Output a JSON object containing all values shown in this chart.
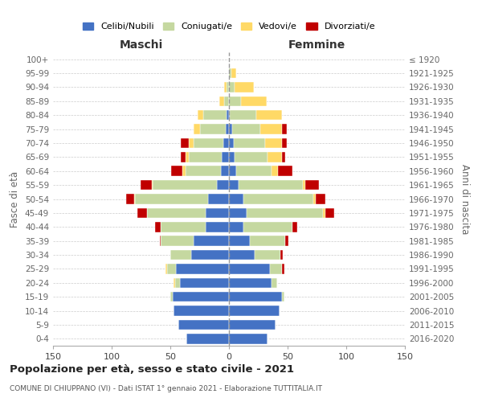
{
  "age_groups": [
    "0-4",
    "5-9",
    "10-14",
    "15-19",
    "20-24",
    "25-29",
    "30-34",
    "35-39",
    "40-44",
    "45-49",
    "50-54",
    "55-59",
    "60-64",
    "65-69",
    "70-74",
    "75-79",
    "80-84",
    "85-89",
    "90-94",
    "95-99",
    "100+"
  ],
  "birth_years": [
    "2016-2020",
    "2011-2015",
    "2006-2010",
    "2001-2005",
    "1996-2000",
    "1991-1995",
    "1986-1990",
    "1981-1985",
    "1976-1980",
    "1971-1975",
    "1966-1970",
    "1961-1965",
    "1956-1960",
    "1951-1955",
    "1946-1950",
    "1941-1945",
    "1936-1940",
    "1931-1935",
    "1926-1930",
    "1921-1925",
    "≤ 1920"
  ],
  "maschi": {
    "celibi": [
      36,
      43,
      47,
      48,
      42,
      45,
      32,
      30,
      20,
      20,
      18,
      10,
      7,
      6,
      5,
      3,
      2,
      0,
      0,
      0,
      0
    ],
    "coniugati": [
      0,
      0,
      0,
      2,
      4,
      8,
      18,
      28,
      38,
      50,
      62,
      55,
      30,
      28,
      25,
      22,
      20,
      4,
      2,
      0,
      0
    ],
    "vedovi": [
      0,
      0,
      0,
      0,
      1,
      1,
      0,
      0,
      0,
      0,
      1,
      1,
      3,
      3,
      4,
      5,
      5,
      4,
      2,
      0,
      0
    ],
    "divorziati": [
      0,
      0,
      0,
      0,
      0,
      0,
      0,
      1,
      5,
      8,
      7,
      9,
      9,
      4,
      7,
      0,
      0,
      0,
      0,
      0,
      0
    ]
  },
  "femmine": {
    "nubili": [
      33,
      40,
      43,
      45,
      36,
      35,
      22,
      18,
      12,
      15,
      12,
      8,
      6,
      5,
      4,
      3,
      1,
      0,
      0,
      0,
      0
    ],
    "coniugate": [
      0,
      0,
      0,
      2,
      5,
      10,
      22,
      30,
      42,
      65,
      60,
      55,
      30,
      28,
      27,
      24,
      22,
      10,
      5,
      2,
      0
    ],
    "vedove": [
      0,
      0,
      0,
      0,
      0,
      0,
      0,
      0,
      0,
      2,
      2,
      2,
      6,
      12,
      14,
      18,
      22,
      22,
      16,
      4,
      0
    ],
    "divorziate": [
      0,
      0,
      0,
      0,
      0,
      2,
      2,
      3,
      4,
      8,
      8,
      12,
      12,
      3,
      4,
      4,
      0,
      0,
      0,
      0,
      0
    ]
  },
  "colors": {
    "celibi": "#4472C4",
    "coniugati": "#C5D8A0",
    "vedovi": "#FFD966",
    "divorziati": "#C00000"
  },
  "xlim": 150,
  "title": "Popolazione per età, sesso e stato civile - 2021",
  "subtitle": "COMUNE DI CHIUPPANO (VI) - Dati ISTAT 1° gennaio 2021 - Elaborazione TUTTITALIA.IT",
  "xlabel_left": "Maschi",
  "xlabel_right": "Femmine",
  "ylabel_left": "Fasce di età",
  "ylabel_right": "Anni di nascita"
}
